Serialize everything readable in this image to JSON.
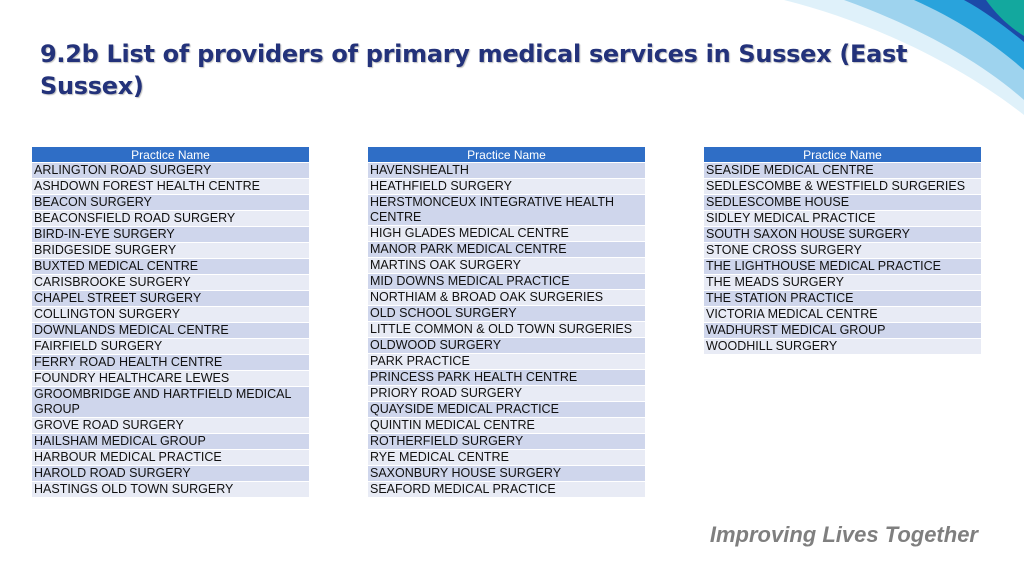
{
  "title": "9.2b List of providers of primary medical services in Sussex (East Sussex)",
  "tables": [
    {
      "header": "Practice Name",
      "rows": [
        "ARLINGTON ROAD SURGERY",
        "ASHDOWN FOREST HEALTH CENTRE",
        "BEACON SURGERY",
        "BEACONSFIELD ROAD SURGERY",
        "BIRD-IN-EYE SURGERY",
        "BRIDGESIDE SURGERY",
        "BUXTED MEDICAL CENTRE",
        "CARISBROOKE SURGERY",
        "CHAPEL STREET SURGERY",
        "COLLINGTON SURGERY",
        "DOWNLANDS MEDICAL CENTRE",
        "FAIRFIELD SURGERY",
        "FERRY ROAD HEALTH CENTRE",
        "FOUNDRY HEALTHCARE LEWES",
        "GROOMBRIDGE AND HARTFIELD MEDICAL GROUP",
        "GROVE ROAD SURGERY",
        "HAILSHAM MEDICAL GROUP",
        "HARBOUR MEDICAL PRACTICE",
        "HAROLD ROAD SURGERY",
        "HASTINGS OLD TOWN SURGERY"
      ]
    },
    {
      "header": "Practice Name",
      "rows": [
        "HAVENSHEALTH",
        "HEATHFIELD SURGERY",
        "HERSTMONCEUX INTEGRATIVE HEALTH CENTRE",
        "HIGH GLADES MEDICAL CENTRE",
        "MANOR PARK MEDICAL CENTRE",
        "MARTINS OAK SURGERY",
        "MID DOWNS MEDICAL PRACTICE",
        "NORTHIAM & BROAD OAK SURGERIES",
        "OLD SCHOOL SURGERY",
        "LITTLE COMMON & OLD TOWN SURGERIES",
        "OLDWOOD SURGERY",
        "PARK PRACTICE",
        "PRINCESS PARK HEALTH CENTRE",
        "PRIORY ROAD SURGERY",
        "QUAYSIDE MEDICAL PRACTICE",
        "QUINTIN MEDICAL CENTRE",
        "ROTHERFIELD SURGERY",
        "RYE MEDICAL CENTRE",
        "SAXONBURY HOUSE SURGERY",
        "SEAFORD MEDICAL PRACTICE"
      ]
    },
    {
      "header": "Practice Name",
      "rows": [
        "SEASIDE MEDICAL CENTRE",
        "SEDLESCOMBE & WESTFIELD SURGERIES",
        "SEDLESCOMBE HOUSE",
        "SIDLEY MEDICAL PRACTICE",
        "SOUTH SAXON HOUSE SURGERY",
        "STONE CROSS SURGERY",
        "THE LIGHTHOUSE MEDICAL PRACTICE",
        "THE MEADS SURGERY",
        "THE STATION PRACTICE",
        "VICTORIA MEDICAL CENTRE",
        "WADHURST MEDICAL GROUP",
        "WOODHILL SURGERY"
      ]
    }
  ],
  "footer": "Improving Lives Together",
  "colors": {
    "title": "#23327a",
    "header": "#2f6ec6",
    "row_odd": "#cfd6ec",
    "row_even": "#e8ebf5",
    "footer": "#7f7f7f"
  }
}
